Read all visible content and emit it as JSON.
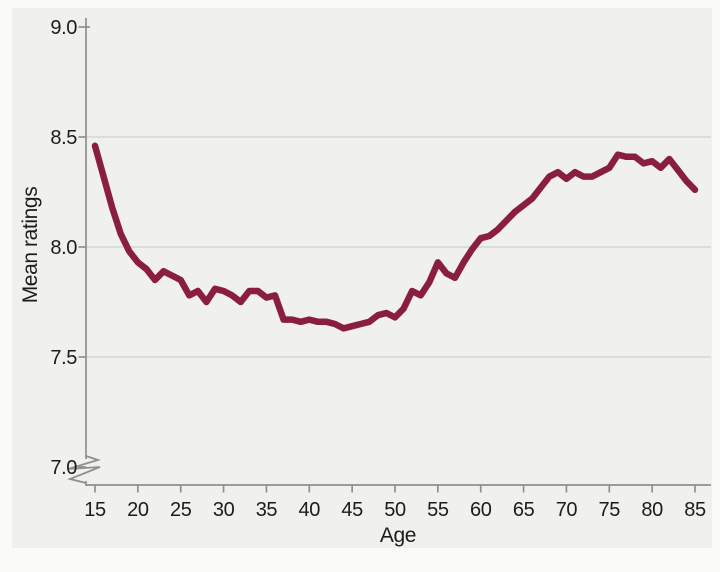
{
  "figure": {
    "panel_background": "#f0f0ee",
    "outer_background": "#fbfbfa",
    "axis_color": "#8f8f8d",
    "grid_color": "#d6d6d4",
    "text_color": "#1c1c1c"
  },
  "chart_data": {
    "type": "line",
    "title": "",
    "xlabel": "Age",
    "ylabel": "Mean ratings",
    "legend": "none",
    "grid": "horizontal",
    "axis_break_below": 7.0,
    "xlim": [
      15,
      85
    ],
    "ylim": [
      7.0,
      9.0
    ],
    "x_ticks": [
      15,
      20,
      25,
      30,
      35,
      40,
      45,
      50,
      55,
      60,
      65,
      70,
      75,
      80,
      85
    ],
    "y_ticks": [
      7.0,
      7.5,
      8.0,
      8.5,
      9.0
    ],
    "y_tick_labels": [
      "7.0",
      "7.5",
      "8.0",
      "8.5",
      "9.0"
    ],
    "grid_values": [
      7.5,
      8.0,
      8.5
    ],
    "line_color": "#8a1e41",
    "x": [
      15,
      16,
      17,
      18,
      19,
      20,
      21,
      22,
      23,
      24,
      25,
      26,
      27,
      28,
      29,
      30,
      31,
      32,
      33,
      34,
      35,
      36,
      37,
      38,
      39,
      40,
      41,
      42,
      43,
      44,
      45,
      46,
      47,
      48,
      49,
      50,
      51,
      52,
      53,
      54,
      55,
      56,
      57,
      58,
      59,
      60,
      61,
      62,
      63,
      64,
      65,
      66,
      67,
      68,
      69,
      70,
      71,
      72,
      73,
      74,
      75,
      76,
      77,
      78,
      79,
      80,
      81,
      82,
      83,
      84,
      85
    ],
    "series": [
      {
        "name": "Mean ratings",
        "values": [
          8.46,
          8.32,
          8.18,
          8.06,
          7.98,
          7.93,
          7.9,
          7.85,
          7.89,
          7.87,
          7.85,
          7.78,
          7.8,
          7.75,
          7.81,
          7.8,
          7.78,
          7.75,
          7.8,
          7.8,
          7.77,
          7.78,
          7.67,
          7.67,
          7.66,
          7.67,
          7.66,
          7.66,
          7.65,
          7.63,
          7.64,
          7.65,
          7.66,
          7.69,
          7.7,
          7.68,
          7.72,
          7.8,
          7.78,
          7.84,
          7.93,
          7.88,
          7.86,
          7.93,
          7.99,
          8.04,
          8.05,
          8.08,
          8.12,
          8.16,
          8.19,
          8.22,
          8.27,
          8.32,
          8.34,
          8.31,
          8.34,
          8.32,
          8.32,
          8.34,
          8.36,
          8.42,
          8.41,
          8.41,
          8.38,
          8.39,
          8.36,
          8.4,
          8.35,
          8.3,
          8.26
        ]
      }
    ]
  }
}
